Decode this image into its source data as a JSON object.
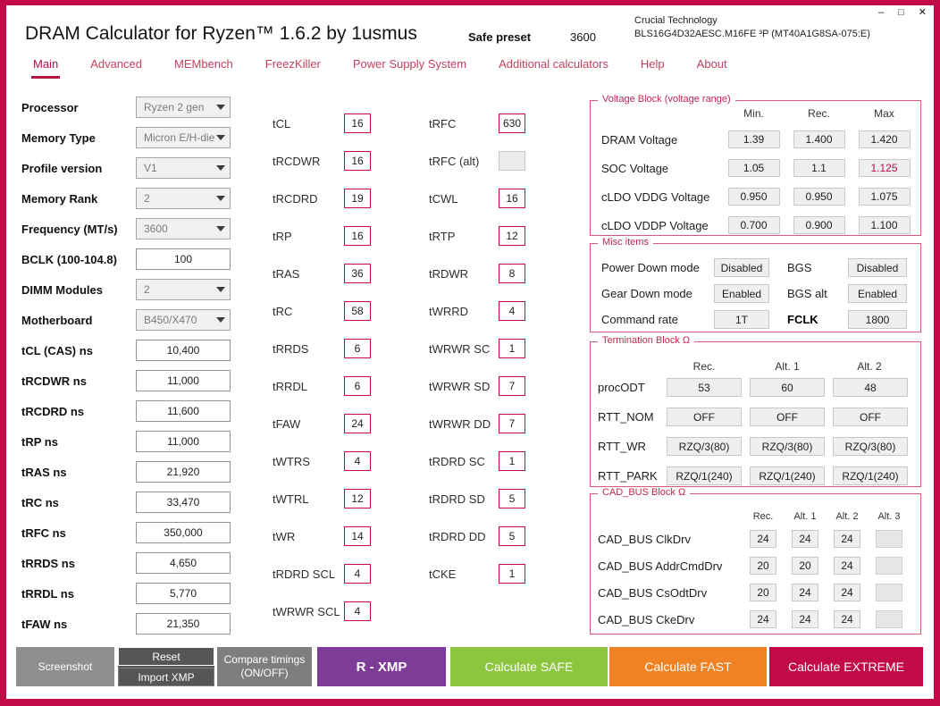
{
  "window": {
    "title": "DRAM Calculator for Ryzen™ 1.6.2 by 1usmus",
    "preset_label": "Safe preset",
    "preset_value": "3600",
    "module_vendor": "Crucial Technology",
    "module_part": "BLS16G4D32AESC.M16FE ³P (MT40A1G8SA-075:E)",
    "controls": {
      "minimize": "–",
      "maximize": "□",
      "close": "✕"
    }
  },
  "tabs": [
    {
      "label": "Main"
    },
    {
      "label": "Advanced"
    },
    {
      "label": "MEMbench"
    },
    {
      "label": "FreezKiller"
    },
    {
      "label": "Power Supply System"
    },
    {
      "label": "Additional calculators"
    },
    {
      "label": "Help"
    },
    {
      "label": "About"
    }
  ],
  "left_panel": [
    {
      "label": "Processor",
      "value": "Ryzen 2 gen",
      "control": "select"
    },
    {
      "label": "Memory Type",
      "value": "Micron E/H-die",
      "control": "select"
    },
    {
      "label": "Profile version",
      "value": "V1",
      "control": "select"
    },
    {
      "label": "Memory Rank",
      "value": "2",
      "control": "select"
    },
    {
      "label": "Frequency (MT/s)",
      "value": "3600",
      "control": "select"
    },
    {
      "label": "BCLK (100-104.8)",
      "value": "100",
      "control": "input"
    },
    {
      "label": "DIMM Modules",
      "value": "2",
      "control": "select"
    },
    {
      "label": "Motherboard",
      "value": "B450/X470",
      "control": "select"
    },
    {
      "label": "tCL (CAS) ns",
      "value": "10,400",
      "control": "input"
    },
    {
      "label": "tRCDWR ns",
      "value": "11,000",
      "control": "input"
    },
    {
      "label": "tRCDRD ns",
      "value": "11,600",
      "control": "input"
    },
    {
      "label": "tRP ns",
      "value": "11,000",
      "control": "input"
    },
    {
      "label": "tRAS ns",
      "value": "21,920",
      "control": "input"
    },
    {
      "label": "tRC ns",
      "value": "33,470",
      "control": "input"
    },
    {
      "label": "tRFC ns",
      "value": "350,000",
      "control": "input"
    },
    {
      "label": "tRRDS ns",
      "value": "4,650",
      "control": "input"
    },
    {
      "label": "tRRDL ns",
      "value": "5,770",
      "control": "input"
    },
    {
      "label": "tFAW ns",
      "value": "21,350",
      "control": "input"
    }
  ],
  "timings_col1": [
    {
      "label": "tCL",
      "value": "16"
    },
    {
      "label": "tRCDWR",
      "value": "16"
    },
    {
      "label": "tRCDRD",
      "value": "19"
    },
    {
      "label": "tRP",
      "value": "16"
    },
    {
      "label": "tRAS",
      "value": "36"
    },
    {
      "label": "tRC",
      "value": "58"
    },
    {
      "label": "tRRDS",
      "value": "6"
    },
    {
      "label": "tRRDL",
      "value": "6"
    },
    {
      "label": "tFAW",
      "value": "24"
    },
    {
      "label": "tWTRS",
      "value": "4"
    },
    {
      "label": "tWTRL",
      "value": "12"
    },
    {
      "label": "tWR",
      "value": "14"
    },
    {
      "label": "tRDRD SCL",
      "value": "4"
    },
    {
      "label": "tWRWR SCL",
      "value": "4"
    }
  ],
  "timings_col2": [
    {
      "label": "tRFC",
      "value": "630"
    },
    {
      "label": "tRFC (alt)",
      "value": ""
    },
    {
      "label": "tCWL",
      "value": "16"
    },
    {
      "label": "tRTP",
      "value": "12"
    },
    {
      "label": "tRDWR",
      "value": "8"
    },
    {
      "label": "tWRRD",
      "value": "4"
    },
    {
      "label": "tWRWR SC",
      "value": "1"
    },
    {
      "label": "tWRWR SD",
      "value": "7"
    },
    {
      "label": "tWRWR DD",
      "value": "7"
    },
    {
      "label": "tRDRD SC",
      "value": "1"
    },
    {
      "label": "tRDRD SD",
      "value": "5"
    },
    {
      "label": "tRDRD DD",
      "value": "5"
    },
    {
      "label": "tCKE",
      "value": "1"
    }
  ],
  "voltage_block": {
    "title": "Voltage Block (voltage range)",
    "headers": [
      "Min.",
      "Rec.",
      "Max"
    ],
    "rows": [
      {
        "label": "DRAM Voltage",
        "min": "1.39",
        "rec": "1.400",
        "max": "1.420"
      },
      {
        "label": "SOC Voltage",
        "min": "1.05",
        "rec": "1.1",
        "max": "1.125"
      },
      {
        "label": "cLDO VDDG Voltage",
        "min": "0.950",
        "rec": "0.950",
        "max": "1.075"
      },
      {
        "label": "cLDO VDDP Voltage",
        "min": "0.700",
        "rec": "0.900",
        "max": "1.100"
      }
    ]
  },
  "misc_block": {
    "title": "Misc items",
    "rows": [
      {
        "label1": "Power Down mode",
        "value1": "Disabled",
        "label2": "BGS",
        "value2": "Disabled"
      },
      {
        "label1": "Gear Down mode",
        "value1": "Enabled",
        "label2": "BGS alt",
        "value2": "Enabled"
      },
      {
        "label1": "Command rate",
        "value1": "1T",
        "label2": "FCLK",
        "value2": "1800"
      }
    ]
  },
  "termination_block": {
    "title": "Termination Block Ω",
    "headers": [
      "Rec.",
      "Alt. 1",
      "Alt. 2"
    ],
    "rows": [
      {
        "label": "procODT",
        "values": [
          "53",
          "60",
          "48"
        ]
      },
      {
        "label": "RTT_NOM",
        "values": [
          "OFF",
          "OFF",
          "OFF"
        ]
      },
      {
        "label": "RTT_WR",
        "values": [
          "RZQ/3(80)",
          "RZQ/3(80)",
          "RZQ/3(80)"
        ]
      },
      {
        "label": "RTT_PARK",
        "values": [
          "RZQ/1(240)",
          "RZQ/1(240)",
          "RZQ/1(240)"
        ]
      }
    ]
  },
  "cad_bus_block": {
    "title": "CAD_BUS Block Ω",
    "headers": [
      "Rec.",
      "Alt. 1",
      "Alt. 2",
      "Alt. 3"
    ],
    "rows": [
      {
        "label": "CAD_BUS ClkDrv",
        "values": [
          "24",
          "24",
          "24",
          ""
        ]
      },
      {
        "label": "CAD_BUS AddrCmdDrv",
        "values": [
          "20",
          "20",
          "24",
          ""
        ]
      },
      {
        "label": "CAD_BUS CsOdtDrv",
        "values": [
          "20",
          "24",
          "24",
          ""
        ]
      },
      {
        "label": "CAD_BUS CkeDrv",
        "values": [
          "24",
          "24",
          "24",
          ""
        ]
      }
    ]
  },
  "footer": {
    "screenshot": "Screenshot",
    "reset": "Reset",
    "import_xmp": "Import XMP",
    "compare_line1": "Compare timings",
    "compare_line2": "(ON/OFF)",
    "r_xmp": "R - XMP",
    "calc_safe": "Calculate SAFE",
    "calc_fast": "Calculate FAST",
    "calc_extreme": "Calculate EXTREME"
  },
  "colors": {
    "accent_crimson": "#c20a47",
    "panel_border": "#d95b77",
    "purple_button": "#7d3c98",
    "green_button": "#8cc63e",
    "orange_button": "#ef8222",
    "gray_button": "#8f8f8f",
    "dark_gray_button": "#565656"
  }
}
